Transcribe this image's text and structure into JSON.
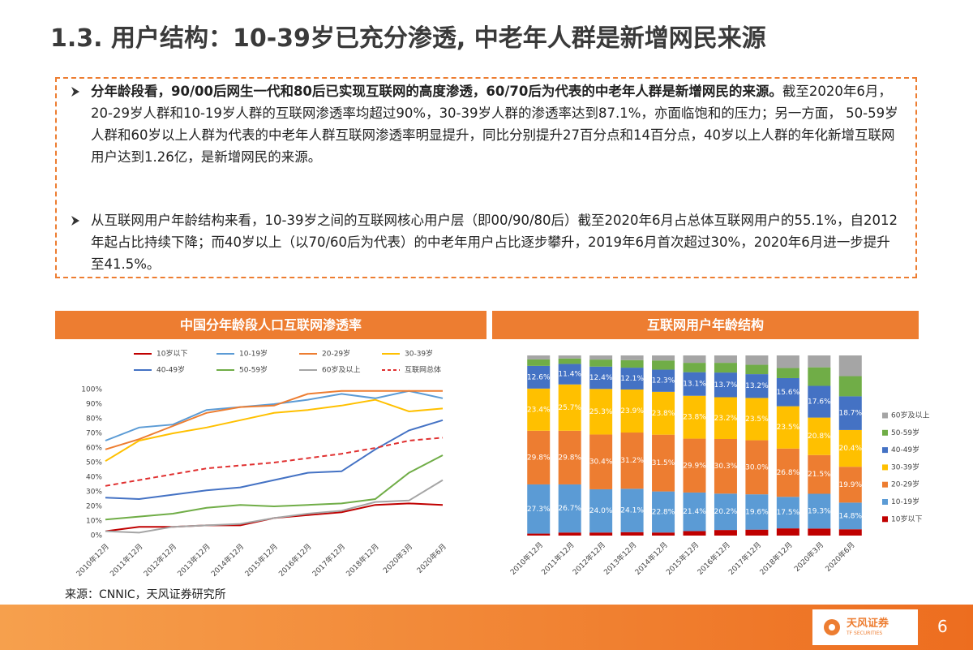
{
  "title": "1.3. 用户结构：10-39岁已充分渗透, 中老年人群是新增网民来源",
  "bullets": [
    {
      "bold": "分年龄段看，90/00后网生一代和80后已实现互联网的高度渗透，60/70后为代表的中老年人群是新增网民的来源。",
      "text": "截至2020年6月，20-29岁人群和10-19岁人群的互联网渗透率均超过90%，30-39岁人群的渗透率达到87.1%，亦面临饱和的压力；另一方面， 50-59岁人群和60岁以上人群为代表的中老年人群互联网渗透率明显提升，同比分别提升27百分点和14百分点，40岁以上人群的年化新增互联网用户达到1.26亿，是新增网民的来源。"
    },
    {
      "text": "从互联网用户年龄结构来看，10-39岁之间的互联网核心用户层（即00/90/80后）截至2020年6月占总体互联网用户的55.1%，自2012年起占比持续下降；而40岁以上（以70/60后为代表）的中老年用户占比逐步攀升，2019年6月首次超过30%，2020年6月进一步提升至41.5%。"
    }
  ],
  "chart_data": [
    {
      "type": "line",
      "title": "中国分年龄段人口互联网渗透率",
      "categories": [
        "2010年12月",
        "2011年12月",
        "2012年12月",
        "2013年12月",
        "2014年12月",
        "2015年12月",
        "2016年12月",
        "2017年12月",
        "2018年12月",
        "2020年3月",
        "2020年6月"
      ],
      "ylim": [
        0,
        100
      ],
      "yticks": [
        {
          "value": 0,
          "label": "0%"
        },
        {
          "value": 10,
          "label": "10%"
        },
        {
          "value": 20,
          "label": "20%"
        },
        {
          "value": 30,
          "label": "30%"
        },
        {
          "value": 40,
          "label": "40%"
        },
        {
          "value": 50,
          "label": "50%"
        },
        {
          "value": 60,
          "label": "60%"
        },
        {
          "value": 70,
          "label": "70%"
        },
        {
          "value": 80,
          "label": "80%"
        },
        {
          "value": 90,
          "label": "90%"
        },
        {
          "value": 100,
          "label": "100%"
        }
      ],
      "grid": false,
      "series": [
        {
          "name": "10岁以下",
          "color": "#c00000",
          "values": [
            3,
            6,
            6,
            7,
            7,
            12,
            14,
            16,
            21,
            22,
            21
          ]
        },
        {
          "name": "10-19岁",
          "color": "#5b9bd5",
          "values": [
            65,
            74,
            76,
            86,
            88,
            90,
            93,
            97,
            94,
            99,
            94
          ]
        },
        {
          "name": "20-29岁",
          "color": "#ed7d31",
          "values": [
            59,
            66,
            75,
            84,
            88,
            89,
            97,
            99,
            99,
            99,
            99
          ]
        },
        {
          "name": "30-39岁",
          "color": "#ffc000",
          "values": [
            51,
            65,
            70,
            74,
            79,
            84,
            86,
            89,
            93,
            85,
            87
          ]
        },
        {
          "name": "40-49岁",
          "color": "#4472c4",
          "values": [
            26,
            25,
            28,
            31,
            33,
            38,
            43,
            44,
            59,
            72,
            79
          ]
        },
        {
          "name": "50-59岁",
          "color": "#70ad47",
          "values": [
            11,
            13,
            15,
            19,
            21,
            20,
            21,
            22,
            25,
            43,
            55
          ]
        },
        {
          "name": "60岁及以上",
          "color": "#a5a5a5",
          "values": [
            3,
            2,
            6,
            7,
            8,
            12,
            15,
            17,
            23,
            24,
            38
          ]
        },
        {
          "name": "互联网总体",
          "color": "#e03030",
          "style": "dashed",
          "values": [
            34,
            38,
            42,
            46,
            48,
            50,
            53,
            56,
            60,
            65,
            67
          ]
        }
      ]
    },
    {
      "type": "stacked_bar",
      "title": "互联网用户年龄结构",
      "categories": [
        "2010年12月",
        "2011年12月",
        "2012年12月",
        "2013年12月",
        "2014年12月",
        "2015年12月",
        "2016年12月",
        "2017年12月",
        "2018年12月",
        "2020年3月",
        "2020年6月"
      ],
      "ylim": [
        0,
        100
      ],
      "series": [
        {
          "name": "10岁以下",
          "color": "#c00000",
          "values": [
            1.1,
            1.7,
            1.7,
            1.9,
            1.7,
            2.5,
            3.1,
            3.3,
            4.0,
            3.9,
            3.5
          ]
        },
        {
          "name": "10-19岁",
          "color": "#5b9bd5",
          "values": [
            27.3,
            26.7,
            24.0,
            24.1,
            22.8,
            21.4,
            20.2,
            19.6,
            17.5,
            19.3,
            14.8
          ],
          "value_labels": [
            "27.3%",
            "26.7%",
            "24.0%",
            "24.1%",
            "22.8%",
            "21.4%",
            "20.2%",
            "19.6%",
            "17.5%",
            "19.3%",
            "14.8%"
          ]
        },
        {
          "name": "20-29岁",
          "color": "#ed7d31",
          "values": [
            29.8,
            29.8,
            30.4,
            31.2,
            31.5,
            29.9,
            30.3,
            30.0,
            26.8,
            21.5,
            19.9
          ],
          "value_labels": [
            "29.8%",
            "29.8%",
            "30.4%",
            "31.2%",
            "31.5%",
            "29.9%",
            "30.3%",
            "30.0%",
            "26.8%",
            "21.5%",
            "19.9%"
          ]
        },
        {
          "name": "30-39岁",
          "color": "#ffc000",
          "values": [
            23.4,
            25.7,
            25.3,
            23.9,
            23.8,
            23.8,
            23.2,
            23.5,
            23.5,
            20.8,
            20.4
          ],
          "value_labels": [
            "23.4%",
            "25.7%",
            "25.3%",
            "23.9%",
            "23.8%",
            "23.8%",
            "23.2%",
            "23.5%",
            "23.5%",
            "20.8%",
            "20.4%"
          ]
        },
        {
          "name": "40-49岁",
          "color": "#4472c4",
          "values": [
            12.6,
            11.4,
            12.4,
            12.1,
            12.3,
            13.1,
            13.7,
            13.2,
            15.6,
            17.6,
            18.7
          ],
          "value_labels": [
            "12.6%",
            "11.4%",
            "12.4%",
            "12.1%",
            "12.3%",
            "13.1%",
            "13.7%",
            "13.2%",
            "15.6%",
            "17.6%",
            "18.7%"
          ]
        },
        {
          "name": "50-59岁",
          "color": "#70ad47",
          "values": [
            3.6,
            3.0,
            3.9,
            4.2,
            5.1,
            5.2,
            5.4,
            5.2,
            5.6,
            10.3,
            11.2
          ]
        },
        {
          "name": "60岁及以上",
          "color": "#a5a5a5",
          "values": [
            2.2,
            1.7,
            2.3,
            2.6,
            2.8,
            4.1,
            4.1,
            5.2,
            7.0,
            6.6,
            11.5
          ]
        }
      ]
    }
  ],
  "source": "来源：CNNIC，天风证券研究所",
  "footer": {
    "logo": "天风证券",
    "logo_sub": "TF SECURITIES",
    "page": "6"
  }
}
